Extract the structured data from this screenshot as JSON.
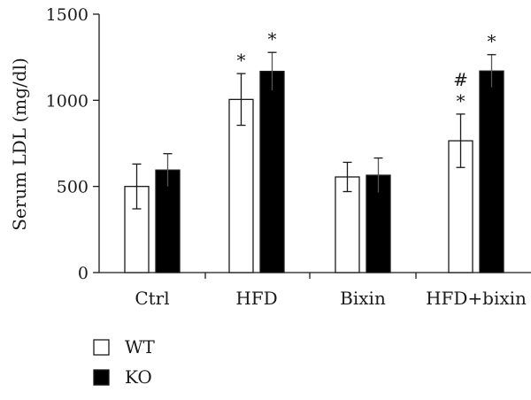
{
  "chart_data": {
    "type": "bar",
    "title": "",
    "xlabel": "",
    "ylabel": "Serum LDL (mg/dl)",
    "ylim": [
      0,
      1500
    ],
    "yticks": [
      0,
      500,
      1000,
      1500
    ],
    "grid": false,
    "legend_position": "bottom-left",
    "categories": [
      "Ctrl",
      "HFD",
      "Bixin",
      "HFD+bixin"
    ],
    "series": [
      {
        "name": "WT",
        "color": "#ffffff",
        "values": [
          500,
          1005,
          555,
          765
        ],
        "errors": [
          130,
          150,
          85,
          155
        ]
      },
      {
        "name": "KO",
        "color": "#000000",
        "values": [
          595,
          1168,
          565,
          1170
        ],
        "errors": [
          95,
          110,
          100,
          95
        ]
      }
    ],
    "annotations": [
      {
        "category": 1,
        "series": 0,
        "text": "*"
      },
      {
        "category": 1,
        "series": 1,
        "text": "*"
      },
      {
        "category": 3,
        "series": 0,
        "text": "*"
      },
      {
        "category": 3,
        "series": 0,
        "text": "#"
      },
      {
        "category": 3,
        "series": 1,
        "text": "*"
      }
    ]
  }
}
